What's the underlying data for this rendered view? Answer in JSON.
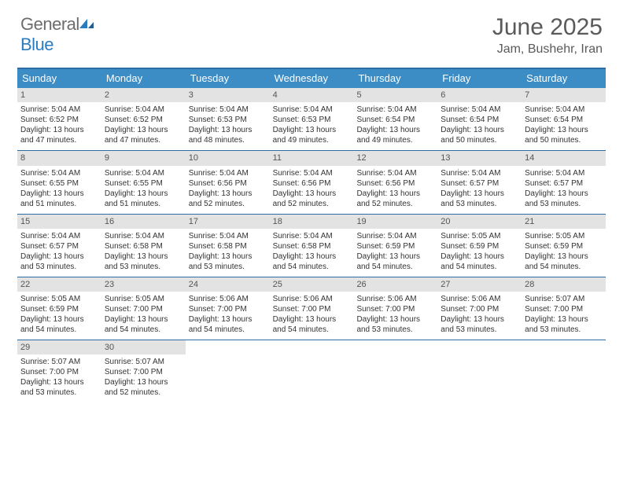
{
  "brand": {
    "word1": "General",
    "word2": "Blue"
  },
  "title": "June 2025",
  "location": "Jam, Bushehr, Iran",
  "colors": {
    "header_bg": "#3c8dc5",
    "border": "#2e6da4",
    "daynum_bg": "#e3e3e3",
    "text": "#333333",
    "logo_gray": "#6d6d6d",
    "logo_blue": "#2b7bbf"
  },
  "weekdays": [
    "Sunday",
    "Monday",
    "Tuesday",
    "Wednesday",
    "Thursday",
    "Friday",
    "Saturday"
  ],
  "weeks": [
    [
      {
        "n": "1",
        "sr": "5:04 AM",
        "ss": "6:52 PM",
        "dl": "13 hours and 47 minutes."
      },
      {
        "n": "2",
        "sr": "5:04 AM",
        "ss": "6:52 PM",
        "dl": "13 hours and 47 minutes."
      },
      {
        "n": "3",
        "sr": "5:04 AM",
        "ss": "6:53 PM",
        "dl": "13 hours and 48 minutes."
      },
      {
        "n": "4",
        "sr": "5:04 AM",
        "ss": "6:53 PM",
        "dl": "13 hours and 49 minutes."
      },
      {
        "n": "5",
        "sr": "5:04 AM",
        "ss": "6:54 PM",
        "dl": "13 hours and 49 minutes."
      },
      {
        "n": "6",
        "sr": "5:04 AM",
        "ss": "6:54 PM",
        "dl": "13 hours and 50 minutes."
      },
      {
        "n": "7",
        "sr": "5:04 AM",
        "ss": "6:54 PM",
        "dl": "13 hours and 50 minutes."
      }
    ],
    [
      {
        "n": "8",
        "sr": "5:04 AM",
        "ss": "6:55 PM",
        "dl": "13 hours and 51 minutes."
      },
      {
        "n": "9",
        "sr": "5:04 AM",
        "ss": "6:55 PM",
        "dl": "13 hours and 51 minutes."
      },
      {
        "n": "10",
        "sr": "5:04 AM",
        "ss": "6:56 PM",
        "dl": "13 hours and 52 minutes."
      },
      {
        "n": "11",
        "sr": "5:04 AM",
        "ss": "6:56 PM",
        "dl": "13 hours and 52 minutes."
      },
      {
        "n": "12",
        "sr": "5:04 AM",
        "ss": "6:56 PM",
        "dl": "13 hours and 52 minutes."
      },
      {
        "n": "13",
        "sr": "5:04 AM",
        "ss": "6:57 PM",
        "dl": "13 hours and 53 minutes."
      },
      {
        "n": "14",
        "sr": "5:04 AM",
        "ss": "6:57 PM",
        "dl": "13 hours and 53 minutes."
      }
    ],
    [
      {
        "n": "15",
        "sr": "5:04 AM",
        "ss": "6:57 PM",
        "dl": "13 hours and 53 minutes."
      },
      {
        "n": "16",
        "sr": "5:04 AM",
        "ss": "6:58 PM",
        "dl": "13 hours and 53 minutes."
      },
      {
        "n": "17",
        "sr": "5:04 AM",
        "ss": "6:58 PM",
        "dl": "13 hours and 53 minutes."
      },
      {
        "n": "18",
        "sr": "5:04 AM",
        "ss": "6:58 PM",
        "dl": "13 hours and 54 minutes."
      },
      {
        "n": "19",
        "sr": "5:04 AM",
        "ss": "6:59 PM",
        "dl": "13 hours and 54 minutes."
      },
      {
        "n": "20",
        "sr": "5:05 AM",
        "ss": "6:59 PM",
        "dl": "13 hours and 54 minutes."
      },
      {
        "n": "21",
        "sr": "5:05 AM",
        "ss": "6:59 PM",
        "dl": "13 hours and 54 minutes."
      }
    ],
    [
      {
        "n": "22",
        "sr": "5:05 AM",
        "ss": "6:59 PM",
        "dl": "13 hours and 54 minutes."
      },
      {
        "n": "23",
        "sr": "5:05 AM",
        "ss": "7:00 PM",
        "dl": "13 hours and 54 minutes."
      },
      {
        "n": "24",
        "sr": "5:06 AM",
        "ss": "7:00 PM",
        "dl": "13 hours and 54 minutes."
      },
      {
        "n": "25",
        "sr": "5:06 AM",
        "ss": "7:00 PM",
        "dl": "13 hours and 54 minutes."
      },
      {
        "n": "26",
        "sr": "5:06 AM",
        "ss": "7:00 PM",
        "dl": "13 hours and 53 minutes."
      },
      {
        "n": "27",
        "sr": "5:06 AM",
        "ss": "7:00 PM",
        "dl": "13 hours and 53 minutes."
      },
      {
        "n": "28",
        "sr": "5:07 AM",
        "ss": "7:00 PM",
        "dl": "13 hours and 53 minutes."
      }
    ],
    [
      {
        "n": "29",
        "sr": "5:07 AM",
        "ss": "7:00 PM",
        "dl": "13 hours and 53 minutes."
      },
      {
        "n": "30",
        "sr": "5:07 AM",
        "ss": "7:00 PM",
        "dl": "13 hours and 52 minutes."
      },
      null,
      null,
      null,
      null,
      null
    ]
  ],
  "labels": {
    "sunrise": "Sunrise: ",
    "sunset": "Sunset: ",
    "daylight": "Daylight: "
  }
}
